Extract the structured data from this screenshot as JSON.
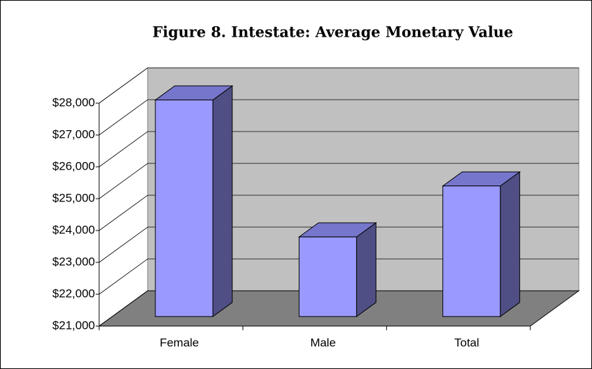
{
  "chart_data": {
    "type": "bar3d",
    "title": "Figure 8. Intestate: Average Monetary Value",
    "categories": [
      "Female",
      "Male",
      "Total"
    ],
    "values": [
      27800,
      23500,
      25100
    ],
    "color": "#9999ff",
    "ylim": [
      21000,
      28000
    ],
    "yticks": [
      {
        "value": 21000,
        "label": "$21,000"
      },
      {
        "value": 22000,
        "label": "$22,000"
      },
      {
        "value": 23000,
        "label": "$23,000"
      },
      {
        "value": 24000,
        "label": "$24,000"
      },
      {
        "value": 25000,
        "label": "$25,000"
      },
      {
        "value": 26000,
        "label": "$26,000"
      },
      {
        "value": 27000,
        "label": "$27,000"
      },
      {
        "value": 28000,
        "label": "$28,000"
      }
    ],
    "grid": true
  }
}
